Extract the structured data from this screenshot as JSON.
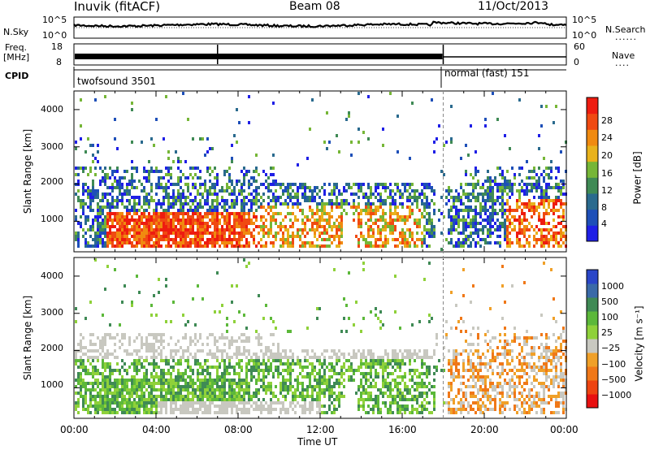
{
  "header": {
    "station": "Inuvik (fitACF)",
    "beam": "Beam 08",
    "date": "11/Oct/2013"
  },
  "top_panels": {
    "nsky": {
      "label": "N.Sky",
      "ticks": [
        "10^5",
        "10^0"
      ]
    },
    "nsearch": {
      "label": "N.Search",
      "ticks": [
        "10^5",
        "10^0"
      ]
    },
    "freq": {
      "label_line1": "Freq.",
      "label_line2": "[MHz]",
      "ticks": [
        "18",
        "8"
      ]
    },
    "nave": {
      "label": "Nave",
      "ticks": [
        "60",
        "0"
      ]
    },
    "cpid": {
      "label": "CPID",
      "modes": [
        {
          "name": "twofsound 3501",
          "start_hour": 0
        },
        {
          "name": "normal (fast) 151",
          "start_hour": 18.0
        }
      ]
    }
  },
  "chart_data": [
    {
      "type": "heatmap",
      "panel": "power",
      "ylabel": "Slant Range [km]",
      "y_ticks": [
        1000,
        2000,
        3000,
        4000
      ],
      "ylim": [
        180,
        4500
      ],
      "xlim": [
        0,
        24
      ],
      "colorbar": {
        "label": "Power [dB]",
        "ticks": [
          "4",
          "8",
          "12",
          "16",
          "20",
          "24",
          "28"
        ],
        "colors": [
          "#1f1fe6",
          "#1e4fb8",
          "#2a6a8e",
          "#3f8a55",
          "#76b637",
          "#e8b21c",
          "#f08a10",
          "#f04a12",
          "#ee1c10"
        ]
      }
    },
    {
      "type": "heatmap",
      "panel": "velocity",
      "ylabel": "Slant Range [km]",
      "y_ticks": [
        1000,
        2000,
        3000,
        4000
      ],
      "ylim": [
        180,
        4500
      ],
      "xlim": [
        0,
        24
      ],
      "xlabel": "Time UT",
      "x_ticks": [
        "00:00",
        "04:00",
        "08:00",
        "12:00",
        "16:00",
        "20:00",
        "00:00"
      ],
      "colorbar": {
        "label": "Velocity [m s⁻¹]",
        "ticks": [
          "1000",
          "500",
          "100",
          "25",
          "−25",
          "−100",
          "−500",
          "−1000"
        ],
        "colors": [
          "#2a46c8",
          "#3a6aa8",
          "#3f8a55",
          "#5cb83a",
          "#8fd13a",
          "#c8c8c0",
          "#f0a028",
          "#f07818",
          "#ee4410",
          "#e81010"
        ]
      }
    }
  ]
}
